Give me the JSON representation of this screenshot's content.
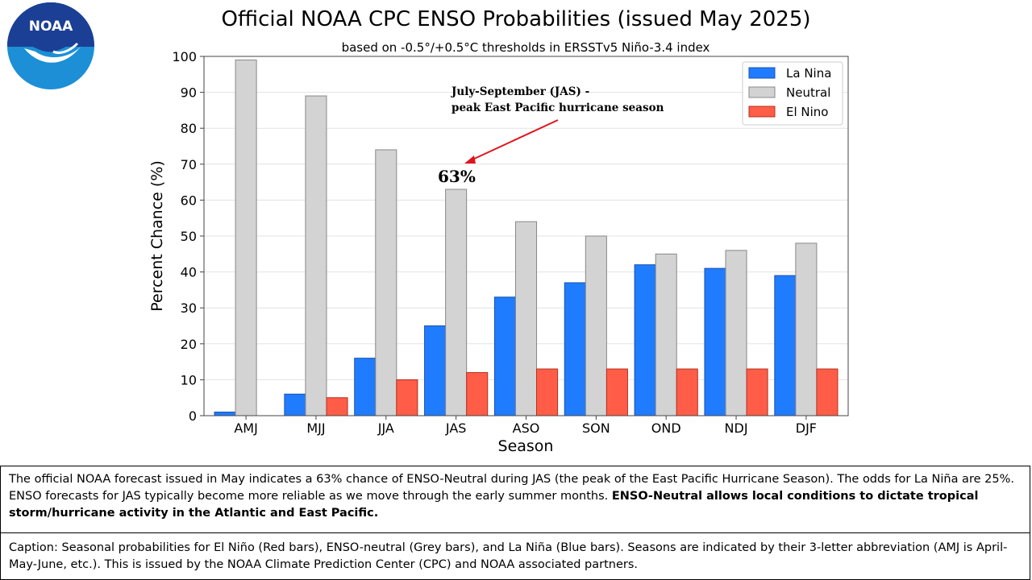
{
  "logo": {
    "text": "NOAA",
    "colors": {
      "dark": "#1b3f94",
      "light": "#1c8fd6"
    }
  },
  "chart_data": {
    "type": "bar",
    "title": "Official NOAA CPC ENSO Probabilities (issued May 2025)",
    "subtitle": "based on -0.5°/+0.5°C thresholds in ERSSTv5 Niño-3.4 index",
    "xlabel": "Season",
    "ylabel": "Percent Chance (%)",
    "ylim": [
      0,
      100
    ],
    "yticks": [
      0,
      10,
      20,
      30,
      40,
      50,
      60,
      70,
      80,
      90,
      100
    ],
    "grid": true,
    "legend_position": "top-right",
    "categories": [
      "AMJ",
      "MJJ",
      "JJA",
      "JAS",
      "ASO",
      "SON",
      "OND",
      "NDJ",
      "DJF"
    ],
    "series": [
      {
        "name": "La Nina",
        "color": "#1f7cff",
        "values": [
          1,
          6,
          16,
          25,
          33,
          37,
          42,
          41,
          39
        ]
      },
      {
        "name": "Neutral",
        "color": "#d3d3d3",
        "values": [
          99,
          89,
          74,
          63,
          54,
          50,
          45,
          46,
          48
        ]
      },
      {
        "name": "El Nino",
        "color": "#ff5d47",
        "values": [
          0,
          5,
          10,
          12,
          13,
          13,
          13,
          13,
          13
        ]
      }
    ],
    "annotations": {
      "note_line1": "July-September (JAS) -",
      "note_line2": "peak East Pacific hurricane season",
      "value_label": "63%",
      "arrow_color": "#e0141e"
    }
  },
  "description": {
    "text": "The official NOAA forecast issued in May indicates a 63% chance of ENSO-Neutral during JAS (the peak of the East Pacific Hurricane Season). The odds for La Niña are 25%. ENSO forecasts for JAS typically become more reliable as we move through the early summer months. ",
    "bold_text": "ENSO-Neutral allows local conditions to dictate tropical storm/hurricane activity in the Atlantic and East Pacific."
  },
  "caption": {
    "text": "Caption: Seasonal probabilities for El Niño (Red bars), ENSO-neutral (Grey bars), and La Niña (Blue bars). Seasons are indicated by their 3-letter abbreviation (AMJ is April-May-June, etc.). This is issued by the NOAA Climate Prediction Center (CPC) and NOAA associated partners."
  }
}
